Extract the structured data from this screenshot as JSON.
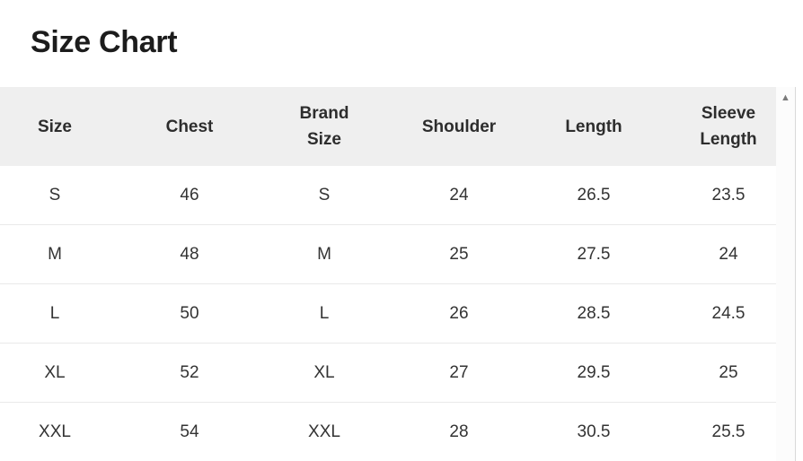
{
  "page": {
    "title": "Size Chart"
  },
  "size_chart": {
    "columns": [
      "Size",
      "Chest",
      "Brand Size",
      "Shoulder",
      "Length",
      "Sleeve Length"
    ],
    "rows": [
      [
        "S",
        "46",
        "S",
        "24",
        "26.5",
        "23.5"
      ],
      [
        "M",
        "48",
        "M",
        "25",
        "27.5",
        "24"
      ],
      [
        "L",
        "50",
        "L",
        "26",
        "28.5",
        "24.5"
      ],
      [
        "XL",
        "52",
        "XL",
        "27",
        "29.5",
        "25"
      ],
      [
        "XXL",
        "54",
        "XXL",
        "28",
        "30.5",
        "25.5"
      ]
    ]
  },
  "icons": {
    "scroll_up_arrow": "▲"
  },
  "colors": {
    "background": "#ffffff",
    "title_text": "#1c1c1c",
    "header_bg": "#efefef",
    "header_text": "#2d2d2d",
    "cell_text": "#333333",
    "row_border": "#e9e9e9",
    "scrollbar_track": "#fcfcfc",
    "scrollbar_border": "#d9d9d9",
    "scrollbar_arrow": "#7a7a7a"
  }
}
